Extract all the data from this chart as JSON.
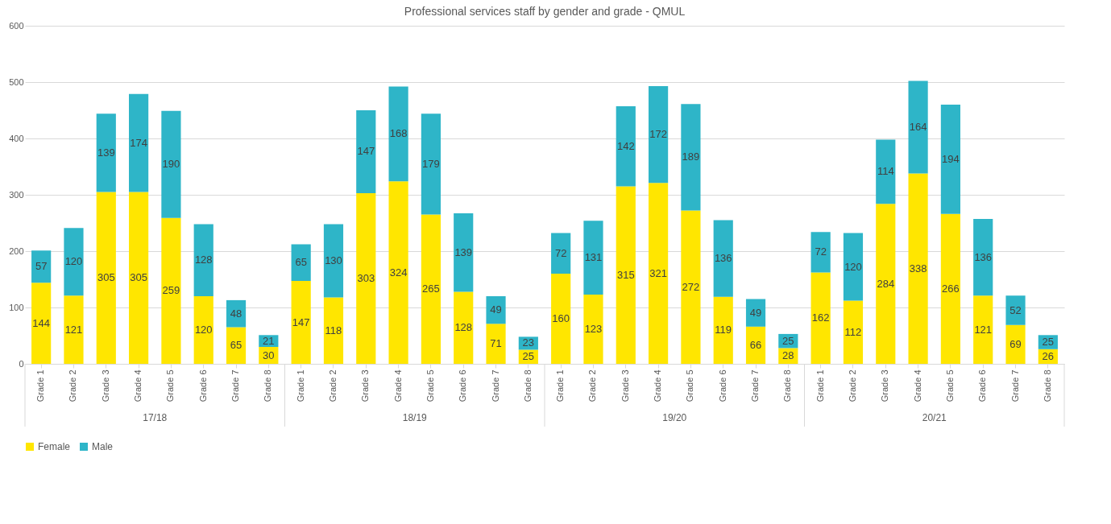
{
  "chart_data": {
    "type": "bar",
    "title": "Professional services staff by gender and grade - QMUL",
    "categories": [
      "Grade 1",
      "Grade 2",
      "Grade 3",
      "Grade 4",
      "Grade 5",
      "Grade 6",
      "Grade 7",
      "Grade 8",
      "Grade 1",
      "Grade 2",
      "Grade 3",
      "Grade 4",
      "Grade 5",
      "Grade 6",
      "Grade 7",
      "Grade 8",
      "Grade 1",
      "Grade 2",
      "Grade 3",
      "Grade 4",
      "Grade 5",
      "Grade 6",
      "Grade 7",
      "Grade 8",
      "Grade 1",
      "Grade 2",
      "Grade 3",
      "Grade 4",
      "Grade 5",
      "Grade 6",
      "Grade 7",
      "Grade 8"
    ],
    "annotations": [
      "17/18",
      "18/19",
      "19/20",
      "20/21"
    ],
    "stacked": true,
    "data_labels": true,
    "grid": "y",
    "legend": "bottom",
    "ylim": [
      0,
      600
    ],
    "yticks": [
      0,
      100,
      200,
      300,
      400,
      500,
      600
    ],
    "series": [
      {
        "name": "Female",
        "color": "#ffe600",
        "values": [
          144,
          121,
          305,
          305,
          259,
          120,
          65,
          30,
          147,
          118,
          303,
          324,
          265,
          128,
          71,
          25,
          160,
          123,
          315,
          321,
          272,
          119,
          66,
          28,
          162,
          112,
          284,
          338,
          266,
          121,
          69,
          26
        ]
      },
      {
        "name": "Male",
        "color": "#2eb5c8",
        "values": [
          57,
          120,
          139,
          174,
          190,
          128,
          48,
          21,
          65,
          130,
          147,
          168,
          179,
          139,
          49,
          23,
          72,
          131,
          142,
          172,
          189,
          136,
          49,
          25,
          72,
          120,
          114,
          164,
          194,
          136,
          52,
          25
        ]
      }
    ]
  }
}
